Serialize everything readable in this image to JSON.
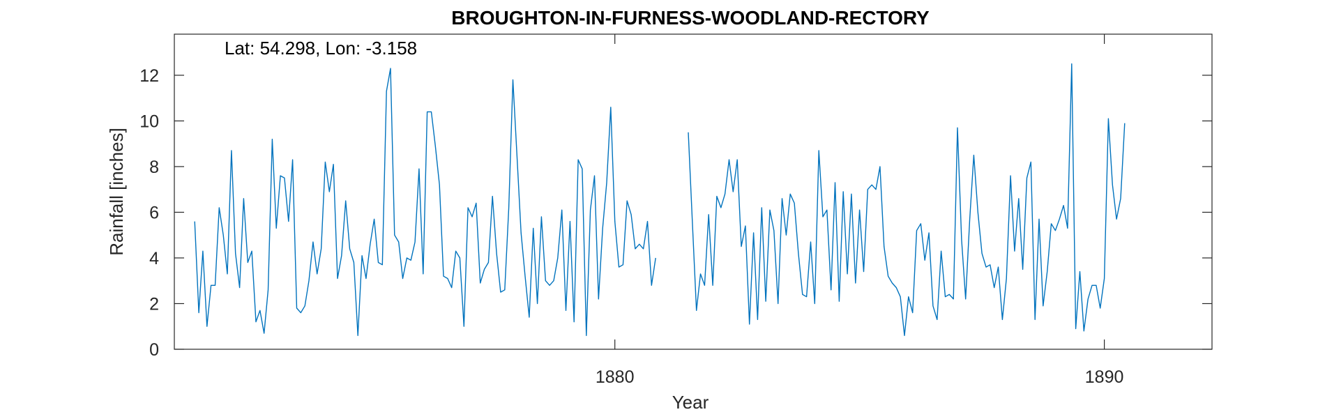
{
  "chart_data": {
    "type": "line",
    "title": "BROUGHTON-IN-FURNESS-WOODLAND-RECTORY",
    "annotation": "Lat: 54.298, Lon: -3.158",
    "xlabel": "Year",
    "ylabel": "Rainfall [inches]",
    "xlim": [
      1871.0,
      1892.2
    ],
    "ylim": [
      0,
      13.8
    ],
    "xticks": [
      1880,
      1890
    ],
    "xtick_labels": [
      "1880",
      "1890"
    ],
    "yticks": [
      0,
      2,
      4,
      6,
      8,
      10,
      12
    ],
    "ytick_labels": [
      "0",
      "2",
      "4",
      "6",
      "8",
      "10",
      "12"
    ],
    "grid": false,
    "legend": "none",
    "line_color": "#0072BD",
    "series": [
      {
        "start": [
          1871,
          6
        ],
        "values": [
          5.6,
          1.6,
          4.3,
          1.0,
          2.8,
          2.8,
          6.2,
          5.0,
          3.3,
          8.7,
          4.2,
          2.7,
          6.6,
          3.8,
          4.3,
          1.2,
          1.7,
          0.7,
          2.6,
          9.2,
          5.3,
          7.6,
          7.5,
          5.6,
          8.3,
          1.8,
          1.6,
          1.9,
          3.0,
          4.7,
          3.3,
          4.4,
          8.2,
          6.9,
          8.1,
          3.1,
          4.1,
          6.5,
          4.4,
          3.8,
          0.6,
          4.1,
          3.1,
          4.6,
          5.7,
          3.8,
          3.7,
          11.3,
          12.3,
          5.0,
          4.7,
          3.1,
          4.0,
          3.9,
          4.7,
          7.9,
          3.3,
          10.4,
          10.4,
          8.9,
          7.2,
          3.2,
          3.1,
          2.7,
          4.3,
          4.0,
          1.0,
          6.2,
          5.8,
          6.4,
          2.9,
          3.5,
          3.8,
          6.7,
          4.2,
          2.5,
          2.6,
          6.2,
          11.8,
          8.5,
          5.1,
          3.2,
          1.4,
          5.3,
          2.0,
          5.8,
          3.0,
          2.8,
          3.0,
          4.0,
          6.1,
          1.7,
          5.6,
          1.2,
          8.3,
          7.9,
          0.6,
          6.1,
          7.6,
          2.2,
          5.3,
          7.3,
          10.6,
          5.6,
          3.6,
          3.7,
          6.5,
          5.9,
          4.4,
          4.6,
          4.4,
          5.6,
          2.8,
          4.0,
          null,
          null,
          null,
          null,
          null,
          null,
          null,
          9.5,
          5.6,
          1.7,
          3.3,
          2.8,
          5.9,
          2.8,
          6.7,
          6.2,
          6.8,
          8.3,
          6.9,
          8.3,
          4.5,
          5.4,
          1.1,
          5.1,
          1.3,
          6.2,
          2.1,
          6.1,
          5.2,
          2.0,
          6.6,
          5.0,
          6.8,
          6.4,
          4.2,
          2.4,
          2.3,
          4.7,
          2.0,
          8.7,
          5.8,
          6.1,
          2.6,
          7.3,
          2.1,
          6.9,
          3.3,
          6.8,
          2.9,
          6.1,
          3.4,
          7.0,
          7.2,
          7.0,
          8.0,
          4.5,
          3.2,
          2.9,
          2.7,
          2.3,
          0.6,
          2.3,
          1.6,
          5.2,
          5.5,
          3.9,
          5.1,
          1.9,
          1.3,
          4.3,
          2.3,
          2.4,
          2.2,
          9.7,
          4.8,
          2.2,
          5.7,
          8.5,
          6.0,
          4.2,
          3.6,
          3.7,
          2.7,
          3.6,
          1.3,
          3.1,
          7.6,
          4.3,
          6.6,
          3.5,
          7.5,
          8.2,
          1.3,
          5.7,
          1.9,
          3.4,
          5.5,
          5.2,
          5.7,
          6.3,
          5.3,
          12.5,
          0.9,
          3.4,
          0.8,
          2.2,
          2.8,
          2.8,
          1.8,
          3.1,
          10.1,
          7.2,
          5.7,
          6.6,
          9.9
        ]
      }
    ]
  }
}
